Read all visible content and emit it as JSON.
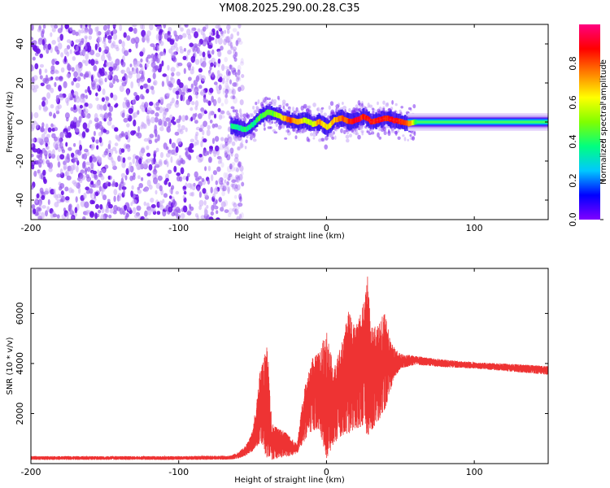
{
  "title": "YM08.2025.290.00.28.C35",
  "chart_data": [
    {
      "type": "heatmap",
      "name": "spectrogram",
      "xlabel": "Height of straight line (km)",
      "ylabel": "Frequency (Hz)",
      "xlim": [
        -200,
        150
      ],
      "ylim": [
        -50,
        50
      ],
      "x_ticks": [
        "-200",
        "-100",
        "0",
        "100"
      ],
      "x_tick_values": [
        -200,
        -100,
        0,
        100
      ],
      "y_ticks": [
        "-40",
        "-20",
        "0",
        "20",
        "40"
      ],
      "y_tick_values": [
        -40,
        -20,
        0,
        20,
        40
      ],
      "noise_region_x": [
        -200,
        -60
      ],
      "colorbar": {
        "label": "Normalized spectral amplitude",
        "range": [
          0,
          1
        ],
        "ticks": [
          "0.0",
          "0.2",
          "0.4",
          "0.6",
          "0.8"
        ],
        "tick_values": [
          0.0,
          0.2,
          0.4,
          0.6,
          0.8
        ],
        "colormap": [
          "#8000ff",
          "#0000ff",
          "#00c8ff",
          "#00ff80",
          "#80ff00",
          "#ffff00",
          "#ff8000",
          "#ff0000",
          "#ff0080"
        ]
      },
      "ridge": {
        "x": [
          -65,
          -60,
          -55,
          -50,
          -45,
          -40,
          -35,
          -30,
          -25,
          -20,
          -15,
          -10,
          -5,
          0,
          5,
          10,
          15,
          20,
          25,
          30,
          35,
          40,
          45,
          50,
          55,
          60,
          80,
          100,
          120,
          150
        ],
        "freq": [
          -2,
          -3,
          -4,
          -1,
          3,
          5,
          4,
          2,
          1,
          0,
          1,
          -1,
          0,
          -3,
          1,
          2,
          0,
          1,
          3,
          0,
          1,
          2,
          1,
          0,
          -1,
          0,
          0,
          0,
          0,
          0
        ],
        "amplitude": [
          0.35,
          0.35,
          0.4,
          0.35,
          0.45,
          0.45,
          0.5,
          0.65,
          0.8,
          0.7,
          0.6,
          0.55,
          0.75,
          0.6,
          0.7,
          0.8,
          0.85,
          0.9,
          0.85,
          0.85,
          0.9,
          0.85,
          0.9,
          0.85,
          0.8,
          0.45,
          0.42,
          0.42,
          0.45,
          0.45
        ]
      }
    },
    {
      "type": "line",
      "name": "snr",
      "xlabel": "Height of straight line (km)",
      "ylabel": "SNR (10 * v/v)",
      "xlim": [
        -200,
        150
      ],
      "ylim": [
        0,
        7800
      ],
      "x_ticks": [
        "-200",
        "-100",
        "0",
        "100"
      ],
      "x_tick_values": [
        -200,
        -100,
        0,
        100
      ],
      "y_ticks": [
        "2000",
        "4000",
        "6000"
      ],
      "y_tick_values": [
        2000,
        4000,
        6000
      ],
      "color": "#ee3333",
      "envelope": {
        "x": [
          -200,
          -150,
          -100,
          -65,
          -60,
          -55,
          -50,
          -45,
          -40,
          -37,
          -35,
          -30,
          -25,
          -20,
          -15,
          -10,
          -5,
          0,
          5,
          10,
          15,
          20,
          25,
          28,
          30,
          35,
          40,
          45,
          50,
          60,
          80,
          100,
          120,
          150
        ],
        "low": [
          150,
          150,
          150,
          160,
          200,
          300,
          500,
          800,
          200,
          100,
          200,
          250,
          300,
          400,
          900,
          1300,
          1400,
          200,
          800,
          1100,
          1200,
          1400,
          1500,
          1000,
          1300,
          1700,
          2200,
          3300,
          3800,
          3950,
          3850,
          3800,
          3700,
          3550
        ],
        "high": [
          300,
          300,
          300,
          320,
          450,
          700,
          1300,
          3700,
          4800,
          1600,
          1500,
          1400,
          1100,
          800,
          3000,
          4200,
          4500,
          5300,
          3800,
          4800,
          6100,
          5600,
          6400,
          7700,
          5400,
          5700,
          6100,
          4700,
          4400,
          4300,
          4150,
          4050,
          4000,
          3900
        ]
      }
    }
  ]
}
